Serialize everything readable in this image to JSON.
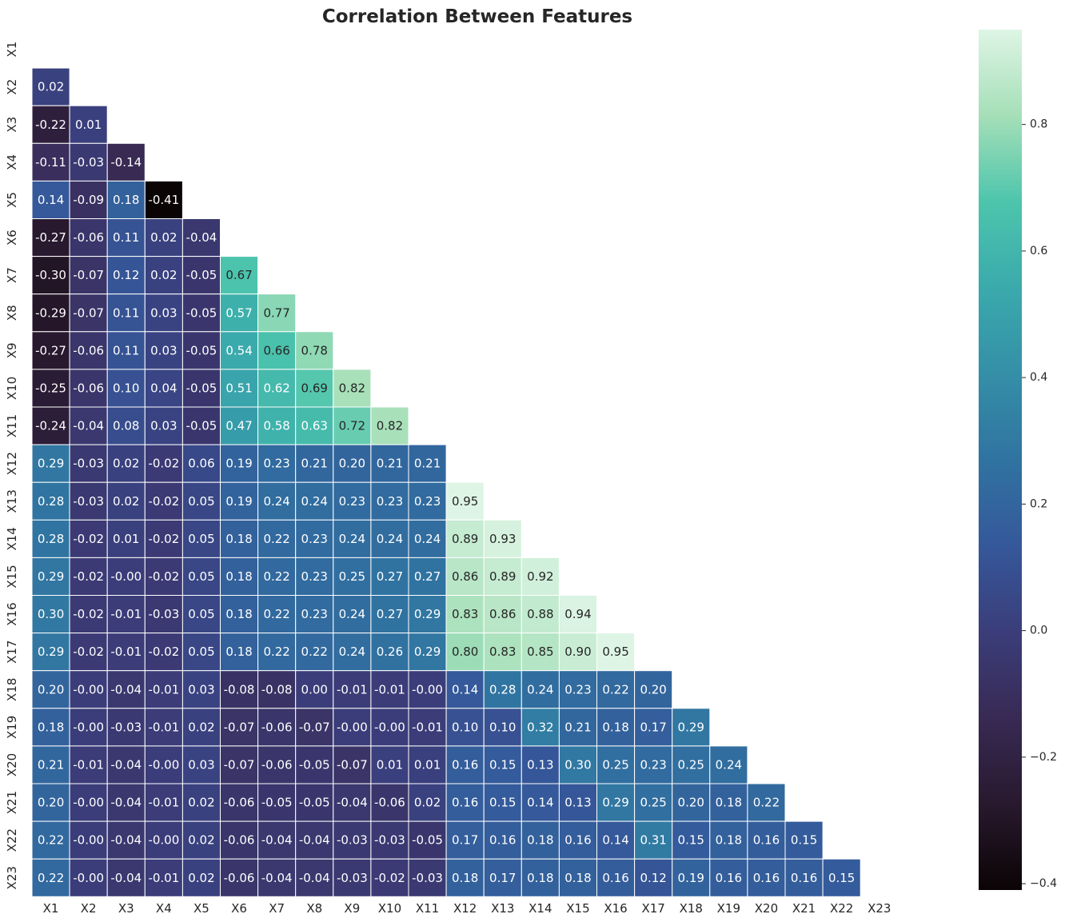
{
  "chart_data": {
    "type": "heatmap",
    "title": "Correlation Between Features",
    "labels": [
      "X1",
      "X2",
      "X3",
      "X4",
      "X5",
      "X6",
      "X7",
      "X8",
      "X9",
      "X10",
      "X11",
      "X12",
      "X13",
      "X14",
      "X15",
      "X16",
      "X17",
      "X18",
      "X19",
      "X20",
      "X21",
      "X22",
      "X23"
    ],
    "mask": "upper-triangle-including-diagonal",
    "colormap": "mako",
    "vmin": -0.41,
    "vmax": 0.95,
    "colorbar_ticks": [
      "−0.4",
      "−0.2",
      "0.0",
      "0.2",
      "0.4",
      "0.6",
      "0.8"
    ],
    "colorbar_tick_values": [
      -0.4,
      -0.2,
      0.0,
      0.2,
      0.4,
      0.6,
      0.8
    ],
    "lower_triangle_values": [
      [],
      [
        "0.02"
      ],
      [
        "-0.22",
        "0.01"
      ],
      [
        "-0.11",
        "-0.03",
        "-0.14"
      ],
      [
        "0.14",
        "-0.09",
        "0.18",
        "-0.41"
      ],
      [
        "-0.27",
        "-0.06",
        "0.11",
        "0.02",
        "-0.04"
      ],
      [
        "-0.30",
        "-0.07",
        "0.12",
        "0.02",
        "-0.05",
        "0.67"
      ],
      [
        "-0.29",
        "-0.07",
        "0.11",
        "0.03",
        "-0.05",
        "0.57",
        "0.77"
      ],
      [
        "-0.27",
        "-0.06",
        "0.11",
        "0.03",
        "-0.05",
        "0.54",
        "0.66",
        "0.78"
      ],
      [
        "-0.25",
        "-0.06",
        "0.10",
        "0.04",
        "-0.05",
        "0.51",
        "0.62",
        "0.69",
        "0.82"
      ],
      [
        "-0.24",
        "-0.04",
        "0.08",
        "0.03",
        "-0.05",
        "0.47",
        "0.58",
        "0.63",
        "0.72",
        "0.82"
      ],
      [
        "0.29",
        "-0.03",
        "0.02",
        "-0.02",
        "0.06",
        "0.19",
        "0.23",
        "0.21",
        "0.20",
        "0.21",
        "0.21"
      ],
      [
        "0.28",
        "-0.03",
        "0.02",
        "-0.02",
        "0.05",
        "0.19",
        "0.24",
        "0.24",
        "0.23",
        "0.23",
        "0.23",
        "0.95"
      ],
      [
        "0.28",
        "-0.02",
        "0.01",
        "-0.02",
        "0.05",
        "0.18",
        "0.22",
        "0.23",
        "0.24",
        "0.24",
        "0.24",
        "0.89",
        "0.93"
      ],
      [
        "0.29",
        "-0.02",
        "-0.00",
        "-0.02",
        "0.05",
        "0.18",
        "0.22",
        "0.23",
        "0.25",
        "0.27",
        "0.27",
        "0.86",
        "0.89",
        "0.92"
      ],
      [
        "0.30",
        "-0.02",
        "-0.01",
        "-0.03",
        "0.05",
        "0.18",
        "0.22",
        "0.23",
        "0.24",
        "0.27",
        "0.29",
        "0.83",
        "0.86",
        "0.88",
        "0.94"
      ],
      [
        "0.29",
        "-0.02",
        "-0.01",
        "-0.02",
        "0.05",
        "0.18",
        "0.22",
        "0.22",
        "0.24",
        "0.26",
        "0.29",
        "0.80",
        "0.83",
        "0.85",
        "0.90",
        "0.95"
      ],
      [
        "0.20",
        "-0.00",
        "-0.04",
        "-0.01",
        "0.03",
        "-0.08",
        "-0.08",
        "0.00",
        "-0.01",
        "-0.01",
        "-0.00",
        "0.14",
        "0.28",
        "0.24",
        "0.23",
        "0.22",
        "0.20"
      ],
      [
        "0.18",
        "-0.00",
        "-0.03",
        "-0.01",
        "0.02",
        "-0.07",
        "-0.06",
        "-0.07",
        "-0.00",
        "-0.00",
        "-0.01",
        "0.10",
        "0.10",
        "0.32",
        "0.21",
        "0.18",
        "0.17",
        "0.29"
      ],
      [
        "0.21",
        "-0.01",
        "-0.04",
        "-0.00",
        "0.03",
        "-0.07",
        "-0.06",
        "-0.05",
        "-0.07",
        "0.01",
        "0.01",
        "0.16",
        "0.15",
        "0.13",
        "0.30",
        "0.25",
        "0.23",
        "0.25",
        "0.24"
      ],
      [
        "0.20",
        "-0.00",
        "-0.04",
        "-0.01",
        "0.02",
        "-0.06",
        "-0.05",
        "-0.05",
        "-0.04",
        "-0.06",
        "0.02",
        "0.16",
        "0.15",
        "0.14",
        "0.13",
        "0.29",
        "0.25",
        "0.20",
        "0.18",
        "0.22"
      ],
      [
        "0.22",
        "-0.00",
        "-0.04",
        "-0.00",
        "0.02",
        "-0.06",
        "-0.04",
        "-0.04",
        "-0.03",
        "-0.03",
        "-0.05",
        "0.17",
        "0.16",
        "0.18",
        "0.16",
        "0.14",
        "0.31",
        "0.15",
        "0.18",
        "0.16",
        "0.15"
      ],
      [
        "0.22",
        "-0.00",
        "-0.04",
        "-0.01",
        "0.02",
        "-0.06",
        "-0.04",
        "-0.04",
        "-0.03",
        "-0.02",
        "-0.03",
        "0.18",
        "0.17",
        "0.18",
        "0.18",
        "0.16",
        "0.12",
        "0.19",
        "0.16",
        "0.16",
        "0.16",
        "0.15"
      ]
    ]
  }
}
